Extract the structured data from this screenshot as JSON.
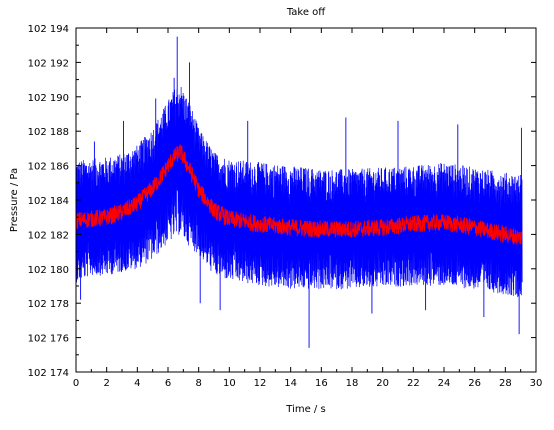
{
  "chart_data": {
    "type": "line",
    "title": "Take off",
    "xlabel": "Time / s",
    "ylabel": "Pressure / Pa",
    "xlim": [
      0,
      30
    ],
    "ylim": [
      102174,
      102194
    ],
    "grid": false,
    "x_ticks": [
      0,
      2,
      4,
      6,
      8,
      10,
      12,
      14,
      16,
      18,
      20,
      22,
      24,
      26,
      28,
      30
    ],
    "y_ticks": [
      102174,
      102176,
      102178,
      102180,
      102182,
      102184,
      102186,
      102188,
      102190,
      102192,
      102194
    ],
    "x_tick_labels": [
      "0",
      "2",
      "4",
      "6",
      "8",
      "10",
      "12",
      "14",
      "16",
      "18",
      "20",
      "22",
      "24",
      "26",
      "28",
      "30"
    ],
    "y_tick_labels": [
      "102 174",
      "102 176",
      "102 178",
      "102 180",
      "102 182",
      "102 184",
      "102 186",
      "102 188",
      "102 190",
      "102 192",
      "102 194"
    ],
    "series": [
      {
        "color": "#0000ff",
        "style": "raw",
        "x": [
          0,
          1,
          2,
          3,
          4,
          5,
          5.5,
          6,
          6.5,
          6.8,
          7,
          7.5,
          8,
          9,
          10,
          12,
          14,
          16,
          18,
          20,
          22,
          24,
          26,
          28,
          29.1
        ],
        "y": [
          102182.8,
          102182.9,
          102183.0,
          102183.3,
          102183.8,
          102184.7,
          102185.3,
          102186.0,
          102186.6,
          102186.8,
          102186.5,
          102185.6,
          102184.6,
          102183.4,
          102182.9,
          102182.6,
          102182.4,
          102182.3,
          102182.3,
          102182.4,
          102182.6,
          102182.7,
          102182.4,
          102182.0,
          102181.8
        ],
        "band_low": [
          102179.2,
          102179.6,
          102179.6,
          102179.8,
          102180.0,
          102180.5,
          102181.0,
          102181.5,
          102181.8,
          102182.0,
          102181.7,
          102181.2,
          102180.8,
          102179.6,
          102179.3,
          102179.0,
          102178.8,
          102178.8,
          102178.8,
          102178.9,
          102179.0,
          102179.0,
          102178.8,
          102178.5,
          102178.3
        ],
        "band_high": [
          102186.3,
          102186.4,
          102186.5,
          102186.7,
          102187.2,
          102188.2,
          102189.0,
          102189.8,
          102190.6,
          102190.8,
          102190.4,
          102189.5,
          102188.2,
          102186.8,
          102186.4,
          102186.2,
          102186.0,
          102185.8,
          102185.8,
          102185.9,
          102186.0,
          102186.2,
          102185.9,
          102185.6,
          102185.5
        ],
        "spikes": [
          [
            0.3,
            102178.2
          ],
          [
            1.2,
            102187.4
          ],
          [
            3.1,
            102188.6
          ],
          [
            5.2,
            102189.9
          ],
          [
            6.4,
            102191.1
          ],
          [
            6.6,
            102193.5
          ],
          [
            7.4,
            102192.0
          ],
          [
            8.1,
            102178.0
          ],
          [
            9.4,
            102177.6
          ],
          [
            11.2,
            102188.6
          ],
          [
            15.2,
            102175.4
          ],
          [
            17.6,
            102188.8
          ],
          [
            19.3,
            102177.4
          ],
          [
            21.0,
            102188.6
          ],
          [
            22.8,
            102177.6
          ],
          [
            24.9,
            102188.4
          ],
          [
            26.6,
            102177.2
          ],
          [
            28.9,
            102176.2
          ],
          [
            29.05,
            102188.2
          ]
        ]
      },
      {
        "color": "#ff0000",
        "style": "filtered",
        "x": [
          0,
          1,
          2,
          3,
          4,
          5,
          5.5,
          6,
          6.5,
          6.8,
          7,
          7.5,
          8,
          9,
          10,
          12,
          14,
          16,
          18,
          20,
          22,
          24,
          26,
          28,
          29.1
        ],
        "y": [
          102182.8,
          102182.9,
          102183.0,
          102183.3,
          102183.8,
          102184.7,
          102185.3,
          102186.0,
          102186.6,
          102186.8,
          102186.5,
          102185.6,
          102184.6,
          102183.4,
          102182.9,
          102182.6,
          102182.4,
          102182.3,
          102182.3,
          102182.4,
          102182.6,
          102182.7,
          102182.4,
          102182.0,
          102181.8
        ],
        "noise": 0.5
      }
    ]
  }
}
